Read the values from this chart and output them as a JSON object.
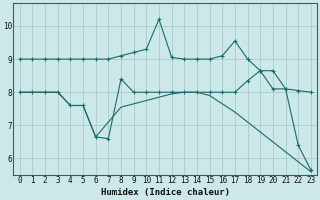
{
  "xlabel": "Humidex (Indice chaleur)",
  "background_color": "#cce8e8",
  "grid_color": "#aacccc",
  "line_color": "#1a6b6b",
  "xlim": [
    -0.5,
    23.5
  ],
  "ylim": [
    5.5,
    10.7
  ],
  "yticks": [
    6,
    7,
    8,
    9,
    10
  ],
  "xticks": [
    0,
    1,
    2,
    3,
    4,
    5,
    6,
    7,
    8,
    9,
    10,
    11,
    12,
    13,
    14,
    15,
    16,
    17,
    18,
    19,
    20,
    21,
    22,
    23
  ],
  "line1_x": [
    0,
    1,
    2,
    3,
    4,
    5,
    6,
    7,
    8,
    9,
    10,
    11,
    12,
    13,
    14,
    15,
    16,
    17,
    18,
    19,
    20,
    21,
    22,
    23
  ],
  "line1_y": [
    9.0,
    9.0,
    9.0,
    9.0,
    9.0,
    9.0,
    9.0,
    9.0,
    9.1,
    9.2,
    9.3,
    10.2,
    9.05,
    9.0,
    9.0,
    9.0,
    9.1,
    9.55,
    9.0,
    8.65,
    8.65,
    8.1,
    8.05,
    8.0
  ],
  "line2_x": [
    0,
    1,
    2,
    3,
    4,
    5,
    6,
    7,
    8,
    9,
    10,
    11,
    12,
    13,
    14,
    15,
    16,
    17,
    18,
    19,
    20,
    21,
    22,
    23
  ],
  "line2_y": [
    8.0,
    8.0,
    8.0,
    8.0,
    7.6,
    7.6,
    6.65,
    6.6,
    8.4,
    8.0,
    8.0,
    8.0,
    8.0,
    8.0,
    8.0,
    8.0,
    8.0,
    8.0,
    8.35,
    8.65,
    8.1,
    8.1,
    6.4,
    5.65
  ],
  "line3_x": [
    0,
    1,
    2,
    3,
    4,
    5,
    6,
    7,
    8,
    9,
    10,
    11,
    12,
    13,
    14,
    15,
    16,
    17,
    18,
    19,
    20,
    21,
    22,
    23
  ],
  "line3_y": [
    8.0,
    8.0,
    8.0,
    8.0,
    7.6,
    7.6,
    6.65,
    7.1,
    7.55,
    7.65,
    7.75,
    7.85,
    7.95,
    8.0,
    8.0,
    7.9,
    7.65,
    7.4,
    7.1,
    6.8,
    6.5,
    6.2,
    5.9,
    5.6
  ]
}
